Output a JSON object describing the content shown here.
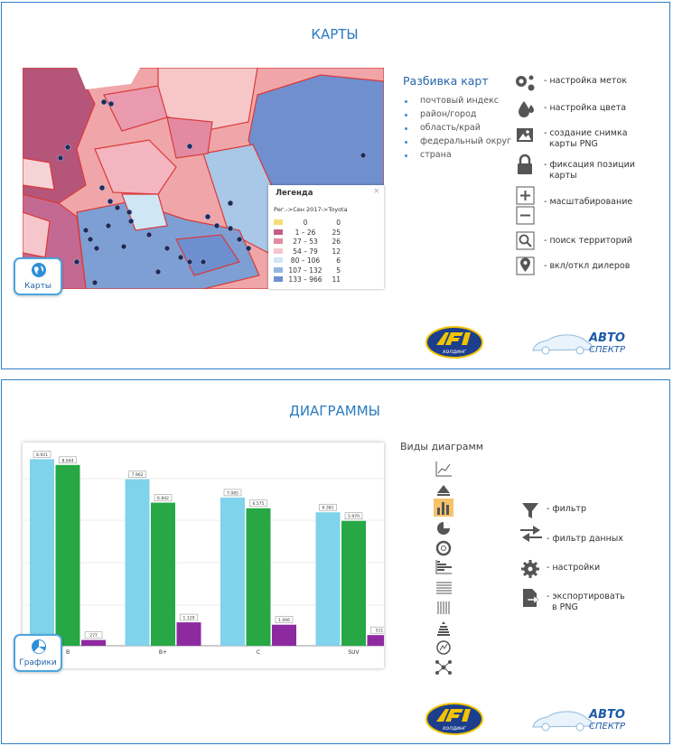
{
  "logo": {
    "holding": "холдинг",
    "brand1": "АВТО",
    "brand2": "СПЕКТР"
  },
  "slides": [
    {
      "title": "КАРТЫ",
      "badge": "Карты",
      "legend": {
        "title": "Легенда",
        "subtitle": "Рег.->Сен 2017->Toyota",
        "rows": [
          {
            "range": "0",
            "count": "0",
            "color": "#f5de78"
          },
          {
            "range": "1 – 26",
            "count": "25",
            "color": "#c45c8a"
          },
          {
            "range": "27 – 53",
            "count": "26",
            "color": "#e38aa2"
          },
          {
            "range": "54 – 79",
            "count": "12",
            "color": "#f5c6cc"
          },
          {
            "range": "80 – 106",
            "count": "6",
            "color": "#cfe6f5"
          },
          {
            "range": "107 – 132",
            "count": "5",
            "color": "#93b6e0"
          },
          {
            "range": "133 – 966",
            "count": "11",
            "color": "#6d8fd0"
          }
        ]
      },
      "breakdown": {
        "title": "Разбивка карт",
        "items": [
          "почтовый индекс",
          "район/город",
          "область/край",
          "федеральный округ",
          "страна"
        ]
      },
      "tools": [
        {
          "lines": [
            "- настройка меток"
          ]
        },
        {
          "lines": [
            "- настройка цвета"
          ]
        },
        {
          "lines": [
            "- создание снимка",
            "карты PNG"
          ]
        },
        {
          "lines": [
            "- фиксация позиции",
            "карты"
          ]
        },
        {
          "lines": [
            "- масштабирование"
          ]
        },
        {
          "lines": [
            "- поиск территорий"
          ]
        },
        {
          "lines": [
            "- вкл/откл дилеров"
          ]
        }
      ]
    },
    {
      "title": "ДИАГРАММЫ",
      "badge": "Графики",
      "types_title": "Виды диаграмм",
      "chart": {
        "type": "bar",
        "categories": [
          "B",
          "B+",
          "C",
          "SUV"
        ],
        "series": [
          {
            "color": "#7fd3ea",
            "values": [
              8921,
              7962,
              7085,
              6381
            ],
            "value_labels": [
              "8.921",
              "7.962",
              "7.085",
              "6.381"
            ]
          },
          {
            "color": "#27a844",
            "values": [
              8644,
              6842,
              6575,
              5970
            ],
            "value_labels": [
              "8.644",
              "6.842",
              "6.575",
              "5.970"
            ]
          },
          {
            "color": "#8e2aa0",
            "values": [
              277,
              1120,
              1006,
              511
            ],
            "value_labels": [
              "277",
              "1.120",
              "1.006",
              "511"
            ]
          }
        ],
        "ylim": [
          0,
          9500
        ]
      },
      "tools": [
        {
          "lines": [
            "- фильтр"
          ]
        },
        {
          "lines": [
            "- фильтр данных"
          ]
        },
        {
          "lines": [
            "- настройки"
          ]
        },
        {
          "lines": [
            "- экспортировать",
            "в PNG"
          ]
        }
      ]
    }
  ]
}
